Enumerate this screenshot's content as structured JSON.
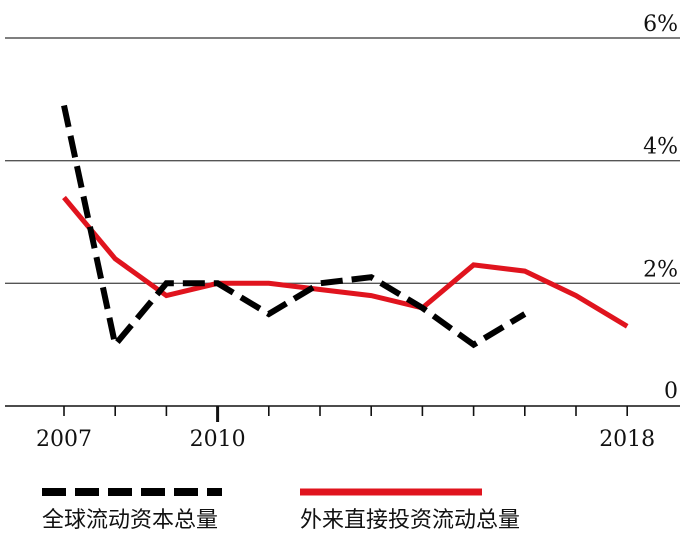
{
  "chart_data": {
    "type": "line",
    "x": [
      2007,
      2008,
      2009,
      2010,
      2011,
      2012,
      2013,
      2014,
      2015,
      2016,
      2017,
      2018
    ],
    "xlim": [
      2006,
      2018
    ],
    "ylim": [
      0,
      6
    ],
    "y_unit": "%",
    "grid": true,
    "y_axis_side": "right",
    "x_tick_labels": [
      {
        "value": 2007,
        "label": "2007"
      },
      {
        "value": 2010,
        "label": "2010"
      },
      {
        "value": 2018,
        "label": "2018"
      }
    ],
    "y_tick_labels": [
      {
        "value": 0,
        "label": "0"
      },
      {
        "value": 2,
        "label": "2%"
      },
      {
        "value": 4,
        "label": "4%"
      },
      {
        "value": 6,
        "label": "6%"
      }
    ],
    "legend_position": "bottom",
    "series": [
      {
        "name": "全球流动资本总量",
        "color": "#000000",
        "style": "dashed",
        "x": [
          2007,
          2008,
          2009,
          2010,
          2011,
          2012,
          2013,
          2014,
          2015,
          2016
        ],
        "values": [
          4.9,
          1.0,
          2.0,
          2.0,
          1.5,
          2.0,
          2.1,
          1.6,
          1.0,
          1.5
        ]
      },
      {
        "name": "外来直接投资流动总量",
        "color": "#e0141e",
        "style": "solid",
        "x": [
          2007,
          2008,
          2009,
          2010,
          2011,
          2012,
          2013,
          2014,
          2015,
          2016,
          2017,
          2018
        ],
        "values": [
          3.4,
          2.4,
          1.8,
          2.0,
          2.0,
          1.9,
          1.8,
          1.6,
          2.3,
          2.2,
          1.8,
          1.3
        ]
      }
    ]
  }
}
